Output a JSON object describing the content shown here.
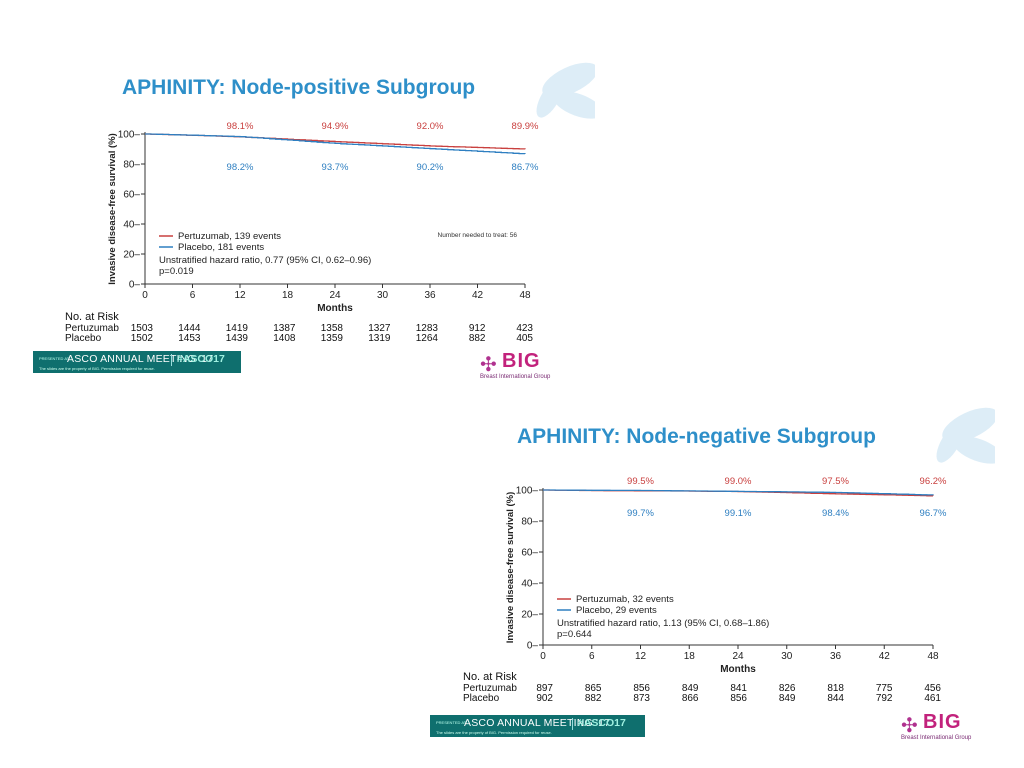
{
  "colors": {
    "pertuzumab": "#c9403f",
    "placebo": "#2e7fc1",
    "title": "#2e8fc9",
    "banner": "#0f6f6e"
  },
  "slide1": {
    "title": "APHINITY: Node-positive Subgroup",
    "nnt": "Number needed to treat: 56",
    "legend": {
      "pertuzumab": "Pertuzumab, 139 events",
      "placebo": "Placebo, 181 events",
      "hr": "Unstratified hazard ratio, 0.77 (95% CI, 0.62–0.96)",
      "p": "p=0.019"
    },
    "risk": {
      "header": "No. at Risk",
      "pertuzumab_label": "Pertuzumab",
      "placebo_label": "Placebo",
      "pertuzumab": [
        "1503",
        "1444",
        "1419",
        "1387",
        "1358",
        "1327",
        "1283",
        "912",
        "423"
      ],
      "placebo": [
        "1502",
        "1453",
        "1439",
        "1408",
        "1359",
        "1319",
        "1264",
        "882",
        "405"
      ]
    },
    "banner": {
      "presented": "PRESENTED AT:",
      "name": "ASCO ANNUAL MEETING '17",
      "tag": "#ASCO17",
      "footnote": "The slides are the property of BIG. Permission required for reuse."
    },
    "big": {
      "word": "BIG",
      "sub": "Breast International Group"
    }
  },
  "slide2": {
    "title": "APHINITY: Node-negative Subgroup",
    "legend": {
      "pertuzumab": "Pertuzumab, 32 events",
      "placebo": "Placebo, 29 events",
      "hr": "Unstratified hazard ratio, 1.13 (95% CI, 0.68–1.86)",
      "p": "p=0.644"
    },
    "risk": {
      "header": "No. at Risk",
      "pertuzumab_label": "Pertuzumab",
      "placebo_label": "Placebo",
      "pertuzumab": [
        "897",
        "865",
        "856",
        "849",
        "841",
        "826",
        "818",
        "775",
        "456"
      ],
      "placebo": [
        "902",
        "882",
        "873",
        "866",
        "856",
        "849",
        "844",
        "792",
        "461"
      ]
    },
    "banner": {
      "presented": "PRESENTED AT:",
      "name": "ASCO ANNUAL MEETING '17",
      "tag": "#ASCO17",
      "footnote": "The slides are the property of BIG. Permission required for reuse."
    },
    "big": {
      "word": "BIG",
      "sub": "Breast International Group"
    }
  },
  "chart_data": [
    {
      "type": "line",
      "title": "APHINITY: Node-positive Subgroup",
      "xlabel": "Months",
      "ylabel": "Invasive disease-free survival (%)",
      "xlim": [
        0,
        48
      ],
      "ylim": [
        0,
        100
      ],
      "xticks": [
        0,
        6,
        12,
        18,
        24,
        30,
        36,
        42,
        48
      ],
      "yticks": [
        0,
        20,
        40,
        60,
        80,
        100
      ],
      "series": [
        {
          "name": "Pertuzumab, 139 events",
          "x": [
            0,
            6,
            12,
            18,
            24,
            30,
            36,
            42,
            48
          ],
          "y": [
            100,
            99.1,
            98.1,
            96.5,
            94.9,
            93.5,
            92.0,
            91.0,
            89.9
          ]
        },
        {
          "name": "Placebo, 181 events",
          "x": [
            0,
            6,
            12,
            18,
            24,
            30,
            36,
            42,
            48
          ],
          "y": [
            100,
            99.2,
            98.2,
            96.0,
            93.7,
            92.0,
            90.2,
            88.5,
            86.7
          ]
        }
      ],
      "annotations": {
        "pertuzumab": [
          {
            "x": 12,
            "label": "98.1%"
          },
          {
            "x": 24,
            "label": "94.9%"
          },
          {
            "x": 36,
            "label": "92.0%"
          },
          {
            "x": 48,
            "label": "89.9%"
          }
        ],
        "placebo": [
          {
            "x": 12,
            "label": "98.2%"
          },
          {
            "x": 24,
            "label": "93.7%"
          },
          {
            "x": 36,
            "label": "90.2%"
          },
          {
            "x": 48,
            "label": "86.7%"
          }
        ]
      }
    },
    {
      "type": "line",
      "title": "APHINITY: Node-negative Subgroup",
      "xlabel": "Months",
      "ylabel": "Invasive disease-free survival (%)",
      "xlim": [
        0,
        48
      ],
      "ylim": [
        0,
        100
      ],
      "xticks": [
        0,
        6,
        12,
        18,
        24,
        30,
        36,
        42,
        48
      ],
      "yticks": [
        0,
        20,
        40,
        60,
        80,
        100
      ],
      "series": [
        {
          "name": "Pertuzumab, 32 events",
          "x": [
            0,
            6,
            12,
            18,
            24,
            30,
            36,
            42,
            48
          ],
          "y": [
            100,
            99.6,
            99.5,
            99.3,
            99.0,
            98.3,
            97.5,
            96.9,
            96.2
          ]
        },
        {
          "name": "Placebo, 29 events",
          "x": [
            0,
            6,
            12,
            18,
            24,
            30,
            36,
            42,
            48
          ],
          "y": [
            100,
            99.8,
            99.7,
            99.4,
            99.1,
            98.8,
            98.4,
            97.6,
            96.7
          ]
        }
      ],
      "annotations": {
        "placebo": [
          {
            "x": 12,
            "label": "99.7%"
          },
          {
            "x": 24,
            "label": "99.1%"
          },
          {
            "x": 36,
            "label": "98.4%"
          },
          {
            "x": 48,
            "label": "96.7%"
          }
        ],
        "pertuzumab": [
          {
            "x": 12,
            "label": "99.5%"
          },
          {
            "x": 24,
            "label": "99.0%"
          },
          {
            "x": 36,
            "label": "97.5%"
          },
          {
            "x": 48,
            "label": "96.2%"
          }
        ]
      }
    }
  ]
}
